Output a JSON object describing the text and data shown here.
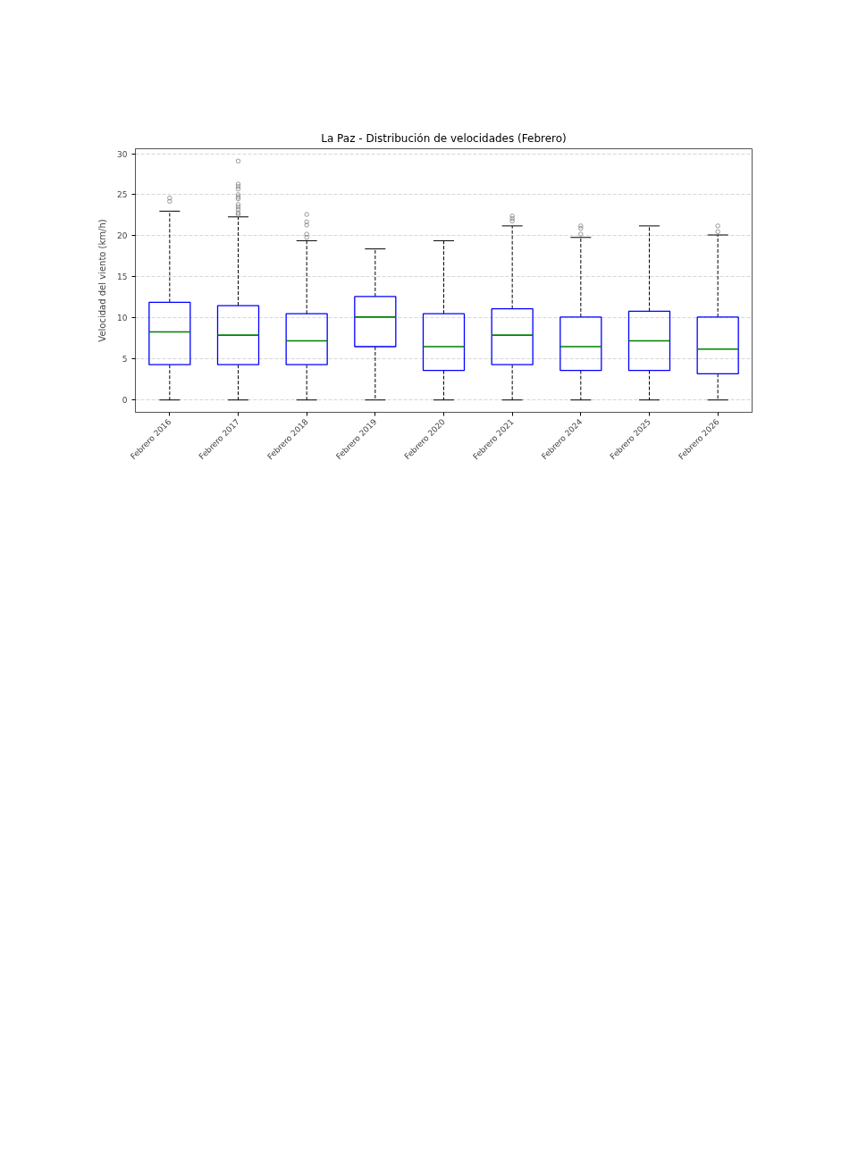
{
  "chart_data": {
    "type": "box",
    "title": "La Paz - Distribución de velocidades (Febrero)",
    "ylabel": "Velocidad del viento (km/h)",
    "categories": [
      "Febrero 2016",
      "Febrero 2017",
      "Febrero 2018",
      "Febrero 2019",
      "Febrero 2020",
      "Febrero 2021",
      "Febrero 2024",
      "Febrero 2025",
      "Febrero 2026"
    ],
    "series": [
      {
        "color": "#0000ff",
        "boxes": [
          {
            "low": 0,
            "q1": 4.3,
            "median": 8.3,
            "q3": 11.9,
            "high": 23.0,
            "outliers": [
              24.2,
              24.6
            ]
          },
          {
            "low": 0,
            "q1": 4.3,
            "median": 7.9,
            "q3": 11.5,
            "high": 22.3,
            "outliers": [
              22.6,
              22.8,
              23.2,
              23.5,
              23.8,
              24.5,
              24.7,
              25.0,
              25.7,
              26.0,
              26.3,
              29.1
            ]
          },
          {
            "low": 0,
            "q1": 4.3,
            "median": 7.2,
            "q3": 10.5,
            "high": 19.4,
            "outliers": [
              19.8,
              20.2,
              21.3,
              21.7,
              22.6
            ]
          },
          {
            "low": 0,
            "q1": 6.5,
            "median": 10.1,
            "q3": 12.6,
            "high": 18.4
          },
          {
            "low": 0,
            "q1": 3.6,
            "median": 6.5,
            "q3": 10.5,
            "high": 19.4
          },
          {
            "low": 0,
            "q1": 4.3,
            "median": 7.9,
            "q3": 11.1,
            "high": 21.2,
            "outliers": [
              21.8,
              22.1,
              22.4
            ]
          },
          {
            "low": 0,
            "q1": 3.6,
            "median": 6.5,
            "q3": 10.1,
            "high": 19.8,
            "outliers": [
              20.2,
              20.9,
              21.2
            ]
          },
          {
            "low": 0,
            "q1": 3.6,
            "median": 7.2,
            "q3": 10.8,
            "high": 21.2
          },
          {
            "low": 0,
            "q1": 3.2,
            "median": 6.2,
            "q3": 10.1,
            "high": 20.1,
            "outliers": [
              20.5,
              21.2
            ]
          }
        ]
      }
    ],
    "ylim": [
      -1.5,
      30.6
    ],
    "yticks": [
      0,
      5,
      10,
      15,
      20,
      25,
      30
    ],
    "grid": "y",
    "marker": "circle"
  }
}
